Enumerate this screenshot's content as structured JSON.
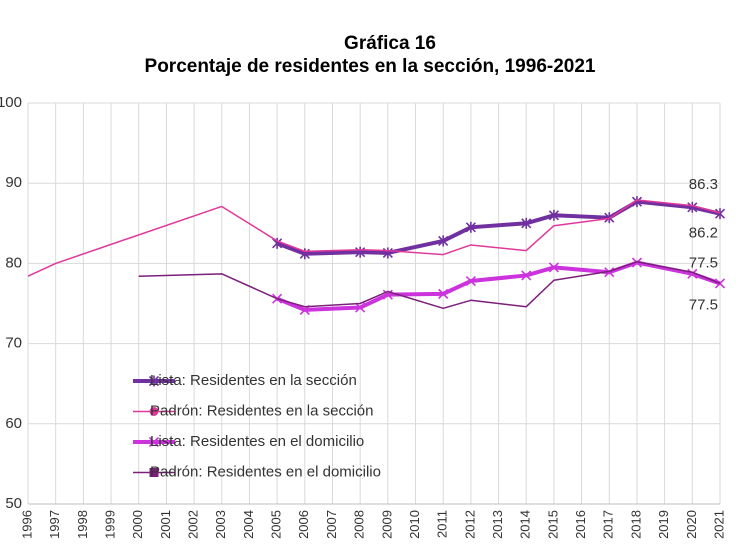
{
  "chart_data": {
    "type": "line",
    "title": "Gráfica 16",
    "subtitle": "Porcentaje de residentes en la sección, 1996-2021",
    "xlim": [
      1996,
      2021
    ],
    "xticks": [
      1996,
      1997,
      1998,
      1999,
      2000,
      2001,
      2002,
      2003,
      2004,
      2005,
      2006,
      2007,
      2008,
      2009,
      2010,
      2011,
      2012,
      2013,
      2014,
      2015,
      2016,
      2017,
      2018,
      2019,
      2020,
      2021
    ],
    "ylim": [
      50,
      100
    ],
    "yticks": [
      50,
      60,
      70,
      80,
      90,
      100
    ],
    "grid": true,
    "legend": "lower left",
    "series": [
      {
        "name": "Lista: Residentes en la sección",
        "color": "#7030a0",
        "width": 4,
        "marker": "asterisk",
        "x": [
          2005,
          2006,
          2008,
          2009,
          2011,
          2012,
          2014,
          2015,
          2017,
          2018,
          2020,
          2021
        ],
        "values": [
          82.5,
          81.2,
          81.4,
          81.3,
          82.8,
          84.5,
          85.0,
          86.0,
          85.7,
          87.7,
          87.0,
          86.2
        ]
      },
      {
        "name": "Padrón: Residentes en la sección",
        "color": "#e0389a",
        "width": 1.5,
        "marker": "circle",
        "x": [
          1996,
          1997,
          2003,
          2005,
          2006,
          2008,
          2009,
          2011,
          2012,
          2014,
          2015,
          2017,
          2018,
          2020,
          2021
        ],
        "values": [
          78.4,
          80.0,
          87.1,
          82.8,
          81.5,
          81.7,
          81.6,
          81.1,
          82.3,
          81.6,
          84.7,
          85.6,
          87.9,
          87.2,
          86.3
        ]
      },
      {
        "name": "Lista: Residentes en el domicilio",
        "color": "#cc33dd",
        "width": 4,
        "marker": "x",
        "x": [
          2005,
          2006,
          2008,
          2009,
          2011,
          2012,
          2014,
          2015,
          2017,
          2018,
          2020,
          2021
        ],
        "values": [
          75.6,
          74.2,
          74.5,
          76.1,
          76.2,
          77.8,
          78.5,
          79.5,
          78.9,
          80.1,
          78.7,
          77.5
        ]
      },
      {
        "name": "Padrón: Residentes en el domicilio",
        "color": "#7b1f7b",
        "width": 1.5,
        "marker": "square",
        "x": [
          2000,
          2003,
          2005,
          2006,
          2008,
          2009,
          2011,
          2012,
          2014,
          2015,
          2017,
          2018,
          2020,
          2021
        ],
        "values": [
          78.4,
          78.7,
          75.6,
          74.6,
          75.0,
          76.5,
          74.4,
          75.4,
          74.6,
          77.9,
          79.0,
          80.2,
          78.9,
          77.5
        ]
      }
    ]
  }
}
